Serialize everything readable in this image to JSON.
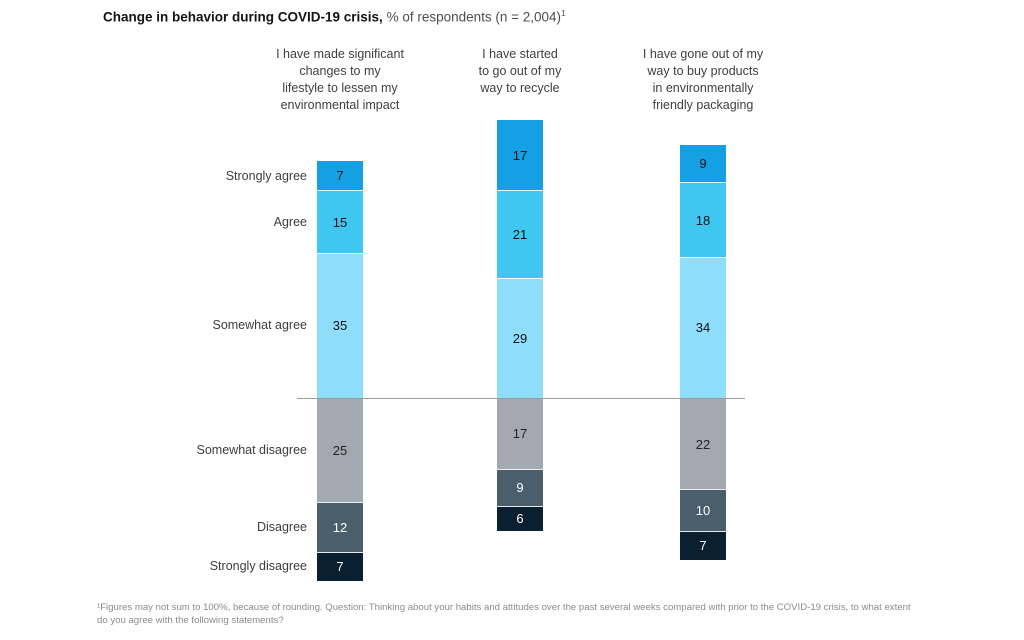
{
  "title": {
    "bold": "Change in behavior during COVID-19 crisis,",
    "regular": " % of respondents (n = 2,004)",
    "superscript": "1"
  },
  "chart_data": {
    "type": "bar",
    "subtype": "diverging-stacked-vertical-columns",
    "title": "Change in behavior during COVID-19 crisis, % of respondents (n = 2,004)",
    "sample_size": "2,004",
    "grid": "off",
    "legend_position": "row-labels-left-of-first-bar",
    "categories": [
      "Strongly agree",
      "Agree",
      "Somewhat agree",
      "Somewhat disagree",
      "Disagree",
      "Strongly disagree"
    ],
    "series": [
      {
        "name": "I have made significant changes to my lifestyle to lessen my environmental impact",
        "label_lines": [
          "I have made significant",
          "changes to my",
          "lifestyle to lessen my",
          "environmental impact"
        ],
        "values": [
          7,
          15,
          35,
          25,
          12,
          7
        ]
      },
      {
        "name": "I have started to go out of my way to recycle",
        "label_lines": [
          "I have started",
          "to go out of my",
          "way to recycle"
        ],
        "values": [
          17,
          21,
          29,
          17,
          9,
          6
        ]
      },
      {
        "name": "I have gone out of my way to buy products in environmentally friendly packaging",
        "label_lines": [
          "I have gone out of my",
          "way to buy products",
          "in environmentally",
          "friendly packaging"
        ],
        "values": [
          9,
          18,
          34,
          22,
          10,
          7
        ]
      }
    ],
    "category_colors": [
      "#14a0e3",
      "#3fc6f1",
      "#8eddfa",
      "#a2a9b0",
      "#4a5e6c",
      "#0a1f2f"
    ],
    "value_label_colors": [
      "#111111",
      "#111111",
      "#111111",
      "#222222",
      "#ffffff",
      "#ffffff"
    ],
    "baseline_after_category_index": 2,
    "baseline_color": "#9a9a9a"
  },
  "footnote": "¹Figures may not sum to 100%, because of rounding. Question: Thinking about your habits and attitudes over the past several weeks compared with prior to the COVID-19 crisis, to what extent do you agree with the following statements?"
}
